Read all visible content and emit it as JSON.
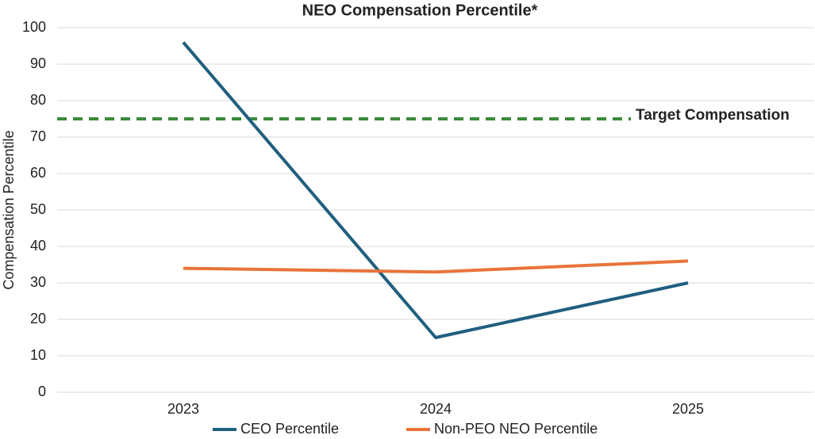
{
  "chart_data": {
    "type": "line",
    "title": "NEO Compensation Percentile*",
    "y_label": "Compensation Percentile",
    "categories": [
      "2023",
      "2024",
      "2025"
    ],
    "series": [
      {
        "name": "CEO Percentile",
        "color": "#1f5f7f",
        "values": [
          96,
          15,
          30
        ]
      },
      {
        "name": "Non-PEO NEO Percentile",
        "color": "#e8743b",
        "values": [
          34,
          33,
          36
        ]
      }
    ],
    "reference_line": {
      "value": 75,
      "label": "Target Compensation",
      "color": "#3a8a3a"
    },
    "ylim": [
      0,
      100
    ],
    "yticks": [
      0,
      10,
      20,
      30,
      40,
      50,
      60,
      70,
      80,
      90,
      100
    ],
    "grid": true
  }
}
